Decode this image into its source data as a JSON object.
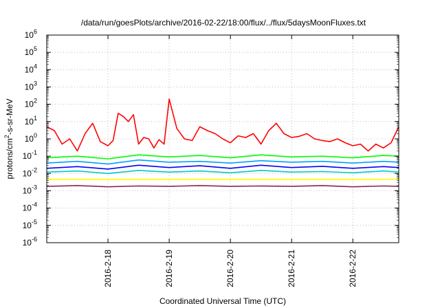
{
  "chart_data": {
    "type": "line",
    "title": "/data/run/goesPlots/archive/2016-02-22/18:00/flux/../flux/5daysMoonFluxes.txt",
    "xlabel": "Coordinated Universal Time (UTC)",
    "ylabel": {
      "prefix": "protons/cm",
      "sup": "2",
      "suffix": "-s-sr-MeV"
    },
    "y_scale": "log",
    "ylim": [
      1e-06,
      1000000.0
    ],
    "y_ticks": [
      {
        "value": 1e-06,
        "base": "10",
        "exp": "-6"
      },
      {
        "value": 1e-05,
        "base": "10",
        "exp": "-5"
      },
      {
        "value": 0.0001,
        "base": "10",
        "exp": "-4"
      },
      {
        "value": 0.001,
        "base": "10",
        "exp": "-3"
      },
      {
        "value": 0.01,
        "base": "10",
        "exp": "-2"
      },
      {
        "value": 0.1,
        "base": "10",
        "exp": "-1"
      },
      {
        "value": 1.0,
        "base": "10",
        "exp": "0"
      },
      {
        "value": 10.0,
        "base": "10",
        "exp": "1"
      },
      {
        "value": 100.0,
        "base": "10",
        "exp": "2"
      },
      {
        "value": 1000.0,
        "base": "10",
        "exp": "3"
      },
      {
        "value": 10000.0,
        "base": "10",
        "exp": "4"
      },
      {
        "value": 100000.0,
        "base": "10",
        "exp": "5"
      },
      {
        "value": 1000000.0,
        "base": "10",
        "exp": "6"
      }
    ],
    "xlim": [
      "2016-02-17T00:00",
      "2016-02-22T18:00"
    ],
    "x_ticks": [
      "2016-2-18",
      "2016-2-19",
      "2016-2-20",
      "2016-2-21",
      "2016-2-22"
    ],
    "grid": true,
    "legend": "none",
    "series": [
      {
        "color": "#ff0000",
        "x": [
          "2016-02-17T00:00",
          "2016-02-17T03:00",
          "2016-02-17T06:00",
          "2016-02-17T09:00",
          "2016-02-17T12:00",
          "2016-02-17T15:00",
          "2016-02-17T18:00",
          "2016-02-17T21:00",
          "2016-02-18T00:00",
          "2016-02-18T02:00",
          "2016-02-18T04:00",
          "2016-02-18T06:00",
          "2016-02-18T08:00",
          "2016-02-18T10:00",
          "2016-02-18T12:00",
          "2016-02-18T14:00",
          "2016-02-18T16:00",
          "2016-02-18T18:00",
          "2016-02-18T20:00",
          "2016-02-18T22:00",
          "2016-02-19T00:00",
          "2016-02-19T03:00",
          "2016-02-19T06:00",
          "2016-02-19T09:00",
          "2016-02-19T12:00",
          "2016-02-19T15:00",
          "2016-02-19T18:00",
          "2016-02-19T21:00",
          "2016-02-20T00:00",
          "2016-02-20T03:00",
          "2016-02-20T06:00",
          "2016-02-20T09:00",
          "2016-02-20T12:00",
          "2016-02-20T15:00",
          "2016-02-20T18:00",
          "2016-02-20T21:00",
          "2016-02-21T00:00",
          "2016-02-21T03:00",
          "2016-02-21T06:00",
          "2016-02-21T09:00",
          "2016-02-21T12:00",
          "2016-02-21T15:00",
          "2016-02-21T18:00",
          "2016-02-21T21:00",
          "2016-02-22T00:00",
          "2016-02-22T03:00",
          "2016-02-22T06:00",
          "2016-02-22T09:00",
          "2016-02-22T12:00",
          "2016-02-22T15:00",
          "2016-02-22T18:00"
        ],
        "values": [
          5,
          3,
          0.5,
          1,
          0.2,
          2,
          8,
          0.7,
          0.4,
          0.8,
          30,
          20,
          10,
          25,
          0.5,
          1.2,
          1,
          0.3,
          0.9,
          0.5,
          200,
          4,
          1,
          0.8,
          5,
          3,
          2,
          1,
          0.6,
          1.5,
          1.2,
          2,
          0.5,
          3,
          8,
          2,
          1.2,
          1.4,
          2,
          1,
          0.8,
          0.7,
          1,
          0.6,
          0.4,
          0.5,
          0.2,
          0.5,
          0.3,
          0.6,
          5
        ]
      },
      {
        "color": "#00ff00",
        "x": [
          "2016-02-17T00:00",
          "2016-02-17T12:00",
          "2016-02-18T00:00",
          "2016-02-18T12:00",
          "2016-02-19T00:00",
          "2016-02-19T12:00",
          "2016-02-20T00:00",
          "2016-02-20T12:00",
          "2016-02-21T00:00",
          "2016-02-21T12:00",
          "2016-02-22T00:00",
          "2016-02-22T12:00",
          "2016-02-22T18:00"
        ],
        "values": [
          0.08,
          0.1,
          0.07,
          0.12,
          0.09,
          0.11,
          0.08,
          0.12,
          0.09,
          0.1,
          0.08,
          0.11,
          0.1
        ]
      },
      {
        "color": "#00a0ff",
        "x": [
          "2016-02-17T00:00",
          "2016-02-17T12:00",
          "2016-02-18T00:00",
          "2016-02-18T12:00",
          "2016-02-19T00:00",
          "2016-02-19T12:00",
          "2016-02-20T00:00",
          "2016-02-20T12:00",
          "2016-02-21T00:00",
          "2016-02-21T12:00",
          "2016-02-22T00:00",
          "2016-02-22T12:00",
          "2016-02-22T18:00"
        ],
        "values": [
          0.04,
          0.05,
          0.035,
          0.06,
          0.045,
          0.05,
          0.04,
          0.055,
          0.045,
          0.05,
          0.04,
          0.05,
          0.045
        ]
      },
      {
        "color": "#0000ff",
        "x": [
          "2016-02-17T00:00",
          "2016-02-17T12:00",
          "2016-02-18T00:00",
          "2016-02-18T12:00",
          "2016-02-19T00:00",
          "2016-02-19T12:00",
          "2016-02-20T00:00",
          "2016-02-20T12:00",
          "2016-02-21T00:00",
          "2016-02-21T12:00",
          "2016-02-22T00:00",
          "2016-02-22T12:00",
          "2016-02-22T18:00"
        ],
        "values": [
          0.02,
          0.025,
          0.018,
          0.03,
          0.022,
          0.028,
          0.02,
          0.03,
          0.022,
          0.026,
          0.02,
          0.025,
          0.022
        ]
      },
      {
        "color": "#00c8c8",
        "x": [
          "2016-02-17T00:00",
          "2016-02-17T12:00",
          "2016-02-18T00:00",
          "2016-02-18T12:00",
          "2016-02-19T00:00",
          "2016-02-19T12:00",
          "2016-02-20T00:00",
          "2016-02-20T12:00",
          "2016-02-21T00:00",
          "2016-02-21T12:00",
          "2016-02-22T00:00",
          "2016-02-22T12:00",
          "2016-02-22T18:00"
        ],
        "values": [
          0.012,
          0.014,
          0.01,
          0.015,
          0.012,
          0.014,
          0.011,
          0.015,
          0.012,
          0.013,
          0.011,
          0.014,
          0.012
        ]
      },
      {
        "color": "#ffff00",
        "x": [
          "2016-02-17T00:00",
          "2016-02-18T00:00",
          "2016-02-19T00:00",
          "2016-02-20T00:00",
          "2016-02-21T00:00",
          "2016-02-22T00:00",
          "2016-02-22T18:00"
        ],
        "values": [
          0.0045,
          0.0045,
          0.0045,
          0.0045,
          0.0045,
          0.0045,
          0.0045
        ]
      },
      {
        "color": "#8b2252",
        "x": [
          "2016-02-17T00:00",
          "2016-02-17T12:00",
          "2016-02-18T00:00",
          "2016-02-18T12:00",
          "2016-02-19T00:00",
          "2016-02-19T12:00",
          "2016-02-20T00:00",
          "2016-02-20T12:00",
          "2016-02-21T00:00",
          "2016-02-21T12:00",
          "2016-02-22T00:00",
          "2016-02-22T12:00",
          "2016-02-22T18:00"
        ],
        "values": [
          0.0018,
          0.002,
          0.0017,
          0.0019,
          0.0018,
          0.002,
          0.0018,
          0.0019,
          0.0018,
          0.002,
          0.0017,
          0.0019,
          0.0018
        ]
      }
    ]
  }
}
